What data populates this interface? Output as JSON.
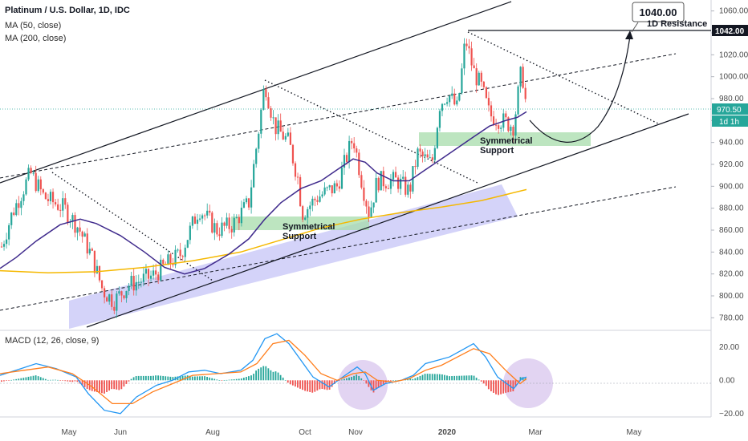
{
  "chart_data": {
    "type": "candlestick",
    "title": "Platinum / U.S. Dollar, 1D, IDC",
    "legend": [
      "MA (50, close)",
      "MA (200, close)"
    ],
    "price_axis": {
      "ylim": [
        770,
        1070
      ],
      "ticks": [
        780,
        800,
        820,
        840,
        860,
        880,
        900,
        920,
        940,
        960,
        980,
        1000,
        1020,
        1040,
        1060
      ],
      "tick_labels": [
        "780.00",
        "800.00",
        "820.00",
        "840.00",
        "860.00",
        "880.00",
        "900.00",
        "920.00",
        "940.00",
        "960.00",
        "980.00",
        "1000.00",
        "1020.00",
        "1040.00",
        "1060.00"
      ],
      "current_price": 970.5,
      "current_price_label": "970.50",
      "resistance_price": 1042,
      "resistance_label": "1042.00",
      "timeframe_badge": "1d 1h"
    },
    "macd": {
      "label": "MACD (12, 26, close, 9)",
      "ylim": [
        -22,
        30
      ],
      "ticks": [
        20,
        0,
        -20
      ],
      "tick_labels": [
        "20.00",
        "0.00",
        "−20.00"
      ]
    },
    "x_axis": {
      "labels": [
        "May",
        "Jun",
        "Aug",
        "Oct",
        "Nov",
        "2020",
        "Mar",
        "May"
      ],
      "label_bold": [
        false,
        false,
        false,
        false,
        false,
        true,
        false,
        false
      ]
    },
    "annotations": {
      "target_box": "1040.00",
      "resistance_text": "1D Resistance",
      "support_1_line1": "Symmetrical",
      "support_1_line2": "Support",
      "support_2_line1": "Symmetrical",
      "support_2_line2": "Support"
    },
    "colors": {
      "up": "#26a69a",
      "down": "#ef5350",
      "ma50": "#3f2a8c",
      "ma200": "#f5b800",
      "macd": "#2196f3",
      "signal": "#ff7d1a",
      "support_zone": "#a7dcab",
      "channel_fill": "#b8b5f5",
      "circle": "#d8c6ee"
    }
  }
}
